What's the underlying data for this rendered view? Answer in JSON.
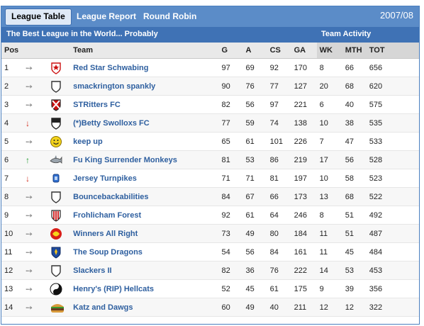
{
  "tabs": [
    {
      "label": "League Table",
      "active": true
    },
    {
      "label": "League Report",
      "active": false
    },
    {
      "label": "Round Robin",
      "active": false
    }
  ],
  "season": "2007/08",
  "league_title": "The Best League in the World... Probably",
  "activity_title": "Team Activity",
  "headers": {
    "pos": "Pos",
    "team": "Team",
    "g": "G",
    "a": "A",
    "cs": "CS",
    "ga": "GA",
    "wk": "WK",
    "mth": "MTH",
    "tot": "TOT"
  },
  "rows": [
    {
      "pos": "1",
      "move": "same",
      "crest": "red-star-crest-icon",
      "team": "Red Star Schwabing",
      "g": "97",
      "a": "69",
      "cs": "92",
      "ga": "170",
      "wk": "8",
      "mth": "66",
      "tot": "656"
    },
    {
      "pos": "2",
      "move": "same",
      "crest": "plain-shield-icon",
      "team": "smackrington spankly",
      "g": "90",
      "a": "76",
      "cs": "77",
      "ga": "127",
      "wk": "20",
      "mth": "68",
      "tot": "620"
    },
    {
      "pos": "3",
      "move": "same",
      "crest": "red-cross-crest-icon",
      "team": "STRitters FC",
      "g": "82",
      "a": "56",
      "cs": "97",
      "ga": "221",
      "wk": "6",
      "mth": "40",
      "tot": "575"
    },
    {
      "pos": "4",
      "move": "down",
      "crest": "split-crest-icon",
      "team": "(*)Betty Swolloxs FC",
      "g": "77",
      "a": "59",
      "cs": "74",
      "ga": "138",
      "wk": "10",
      "mth": "38",
      "tot": "535"
    },
    {
      "pos": "5",
      "move": "same",
      "crest": "smiley-icon",
      "team": "keep up",
      "g": "65",
      "a": "61",
      "cs": "101",
      "ga": "226",
      "wk": "7",
      "mth": "47",
      "tot": "533"
    },
    {
      "pos": "6",
      "move": "up",
      "crest": "shark-icon",
      "team": "Fu King Surrender Monkeys",
      "g": "81",
      "a": "53",
      "cs": "86",
      "ga": "219",
      "wk": "17",
      "mth": "56",
      "tot": "528"
    },
    {
      "pos": "7",
      "move": "down",
      "crest": "blue-badge-icon",
      "team": "Jersey Turnpikes",
      "g": "71",
      "a": "71",
      "cs": "81",
      "ga": "197",
      "wk": "10",
      "mth": "58",
      "tot": "523"
    },
    {
      "pos": "8",
      "move": "same",
      "crest": "plain-shield-icon",
      "team": "Bouncebackabilities",
      "g": "84",
      "a": "67",
      "cs": "66",
      "ga": "173",
      "wk": "13",
      "mth": "68",
      "tot": "522"
    },
    {
      "pos": "9",
      "move": "same",
      "crest": "red-stripes-crest-icon",
      "team": "Frohlicham Forest",
      "g": "92",
      "a": "61",
      "cs": "64",
      "ga": "246",
      "wk": "8",
      "mth": "51",
      "tot": "492"
    },
    {
      "pos": "10",
      "move": "same",
      "crest": "red-yellow-ball-icon",
      "team": "Winners All Right",
      "g": "73",
      "a": "49",
      "cs": "80",
      "ga": "184",
      "wk": "11",
      "mth": "51",
      "tot": "487"
    },
    {
      "pos": "11",
      "move": "same",
      "crest": "blue-gold-crest-icon",
      "team": "The Soup Dragons",
      "g": "54",
      "a": "56",
      "cs": "84",
      "ga": "161",
      "wk": "11",
      "mth": "45",
      "tot": "484"
    },
    {
      "pos": "12",
      "move": "same",
      "crest": "plain-shield-icon",
      "team": "Slackers II",
      "g": "82",
      "a": "36",
      "cs": "76",
      "ga": "222",
      "wk": "14",
      "mth": "53",
      "tot": "453"
    },
    {
      "pos": "13",
      "move": "same",
      "crest": "yin-yang-icon",
      "team": "Henry's (RIP) Hellcats",
      "g": "52",
      "a": "45",
      "cs": "61",
      "ga": "175",
      "wk": "9",
      "mth": "39",
      "tot": "356"
    },
    {
      "pos": "14",
      "move": "same",
      "crest": "burger-icon",
      "team": "Katz and Dawgs",
      "g": "60",
      "a": "49",
      "cs": "40",
      "ga": "211",
      "wk": "12",
      "mth": "12",
      "tot": "322"
    }
  ],
  "colors": {
    "header_blue": "#5b8cc8",
    "subheader_blue": "#3f72b5",
    "link_blue": "#2e5f9f",
    "down_red": "#d12a1a",
    "up_green": "#1f9a2e",
    "same_grey": "#8c8c8c"
  }
}
